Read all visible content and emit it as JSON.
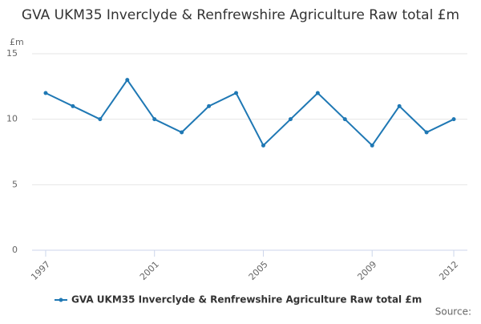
{
  "chart_data": {
    "type": "line",
    "title": "GVA UKM35 Inverclyde & Renfrewshire Agriculture Raw total £m",
    "y_label": "£m",
    "source": "Source:",
    "x": [
      1997,
      1998,
      1999,
      2000,
      2001,
      2002,
      2003,
      2004,
      2005,
      2006,
      2007,
      2008,
      2009,
      2010,
      2011,
      2012
    ],
    "series": [
      {
        "name": "GVA UKM35 Inverclyde & Renfrewshire Agriculture Raw total £m",
        "color": "#1f78b4",
        "values": [
          12,
          11,
          10,
          13,
          10,
          9,
          11,
          12,
          8,
          10,
          12,
          10,
          8,
          11,
          9,
          10
        ]
      }
    ],
    "xlim": [
      1996.5,
      2012.5
    ],
    "xticks": [
      1997,
      2001,
      2005,
      2009,
      2012
    ],
    "ylim": [
      0,
      15
    ],
    "yticks": [
      0,
      5,
      10,
      15
    ],
    "grid": true,
    "legend": "bottom"
  }
}
